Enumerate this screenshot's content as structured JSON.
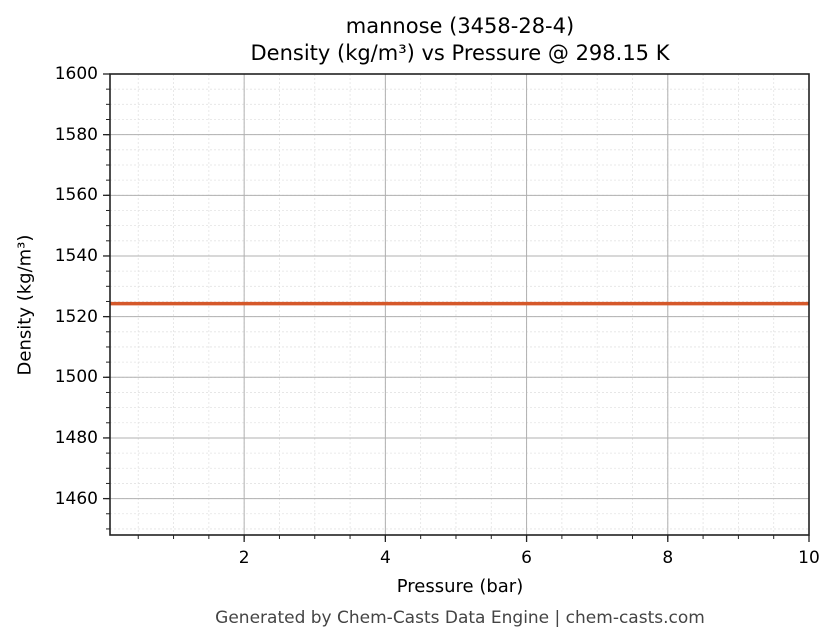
{
  "chart_data": {
    "type": "line",
    "title": "mannose (3458-28-4)",
    "subtitle": "Density (kg/m³) vs Pressure @ 298.15 K",
    "xlabel": "Pressure (bar)",
    "ylabel": "Density (kg/m³)",
    "xlim": [
      0.1,
      10
    ],
    "ylim": [
      1448,
      1600
    ],
    "x_ticks": [
      2,
      4,
      6,
      8,
      10
    ],
    "y_ticks": [
      1460,
      1480,
      1500,
      1520,
      1540,
      1560,
      1580,
      1600
    ],
    "grid": true,
    "minor_grid": true,
    "legend": null,
    "series": [
      {
        "name": "Density",
        "color": "#D5582A",
        "x": [
          0.1,
          1,
          2,
          3,
          4,
          5,
          6,
          7,
          8,
          9,
          10
        ],
        "values": [
          1524.3,
          1524.3,
          1524.3,
          1524.3,
          1524.3,
          1524.3,
          1524.3,
          1524.3,
          1524.3,
          1524.3,
          1524.3
        ]
      }
    ]
  },
  "footer": "Generated by Chem-Casts Data Engine | chem-casts.com"
}
